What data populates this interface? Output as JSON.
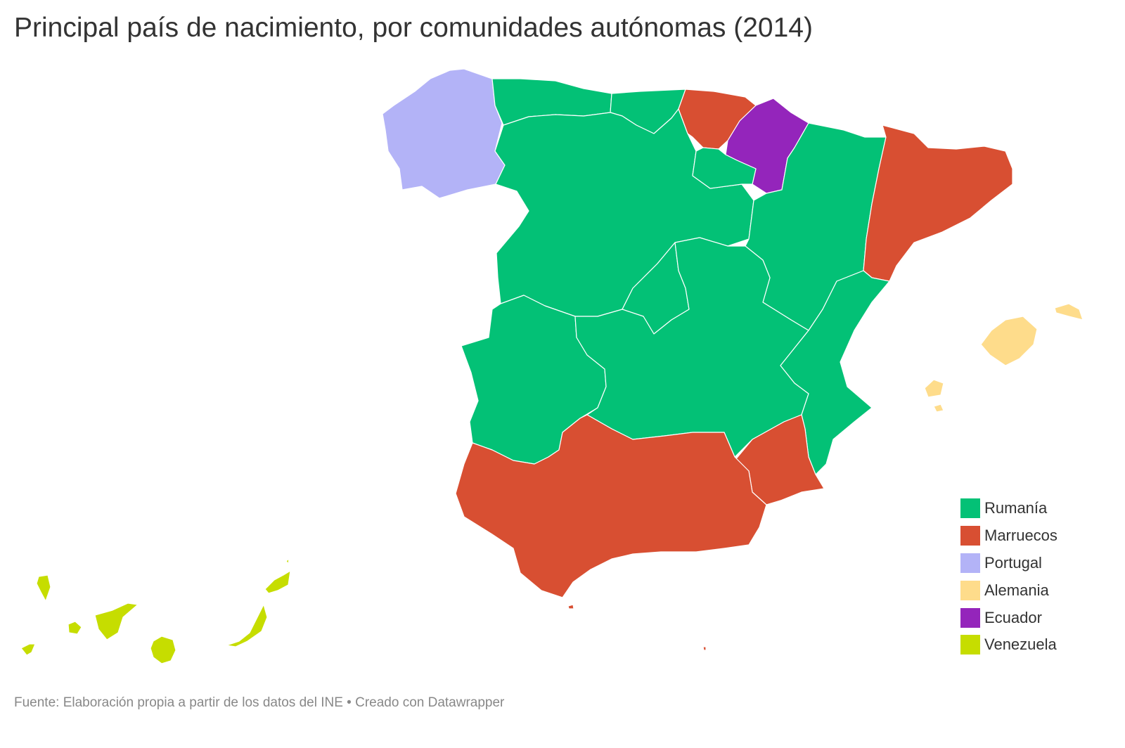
{
  "title": "Principal país de nacimiento, por comunidades autónomas (2014)",
  "source": "Fuente: Elaboración propia a partir de los datos del INE • Creado con Datawrapper",
  "legend": [
    {
      "label": "Rumanía",
      "color": "#03c176"
    },
    {
      "label": "Marruecos",
      "color": "#d84f32"
    },
    {
      "label": "Portugal",
      "color": "#b3b3f7"
    },
    {
      "label": "Alemania",
      "color": "#fedc8b"
    },
    {
      "label": "Ecuador",
      "color": "#9425bb"
    },
    {
      "label": "Venezuela",
      "color": "#c6dd00"
    }
  ],
  "regions": [
    {
      "name": "Galicia",
      "country": "Portugal"
    },
    {
      "name": "Asturias",
      "country": "Rumanía"
    },
    {
      "name": "Cantabria",
      "country": "Rumanía"
    },
    {
      "name": "País Vasco",
      "country": "Marruecos"
    },
    {
      "name": "Navarra",
      "country": "Ecuador"
    },
    {
      "name": "La Rioja",
      "country": "Rumanía"
    },
    {
      "name": "Aragón",
      "country": "Rumanía"
    },
    {
      "name": "Cataluña",
      "country": "Marruecos"
    },
    {
      "name": "Castilla y León",
      "country": "Rumanía"
    },
    {
      "name": "Madrid",
      "country": "Rumanía"
    },
    {
      "name": "Castilla-La Mancha",
      "country": "Rumanía"
    },
    {
      "name": "Extremadura",
      "country": "Rumanía"
    },
    {
      "name": "Comunidad Valenciana",
      "country": "Rumanía"
    },
    {
      "name": "Murcia",
      "country": "Marruecos"
    },
    {
      "name": "Andalucía",
      "country": "Marruecos"
    },
    {
      "name": "Islas Baleares",
      "country": "Alemania"
    },
    {
      "name": "Canarias",
      "country": "Venezuela"
    },
    {
      "name": "Ceuta",
      "country": "Marruecos"
    },
    {
      "name": "Melilla",
      "country": "Marruecos"
    }
  ]
}
